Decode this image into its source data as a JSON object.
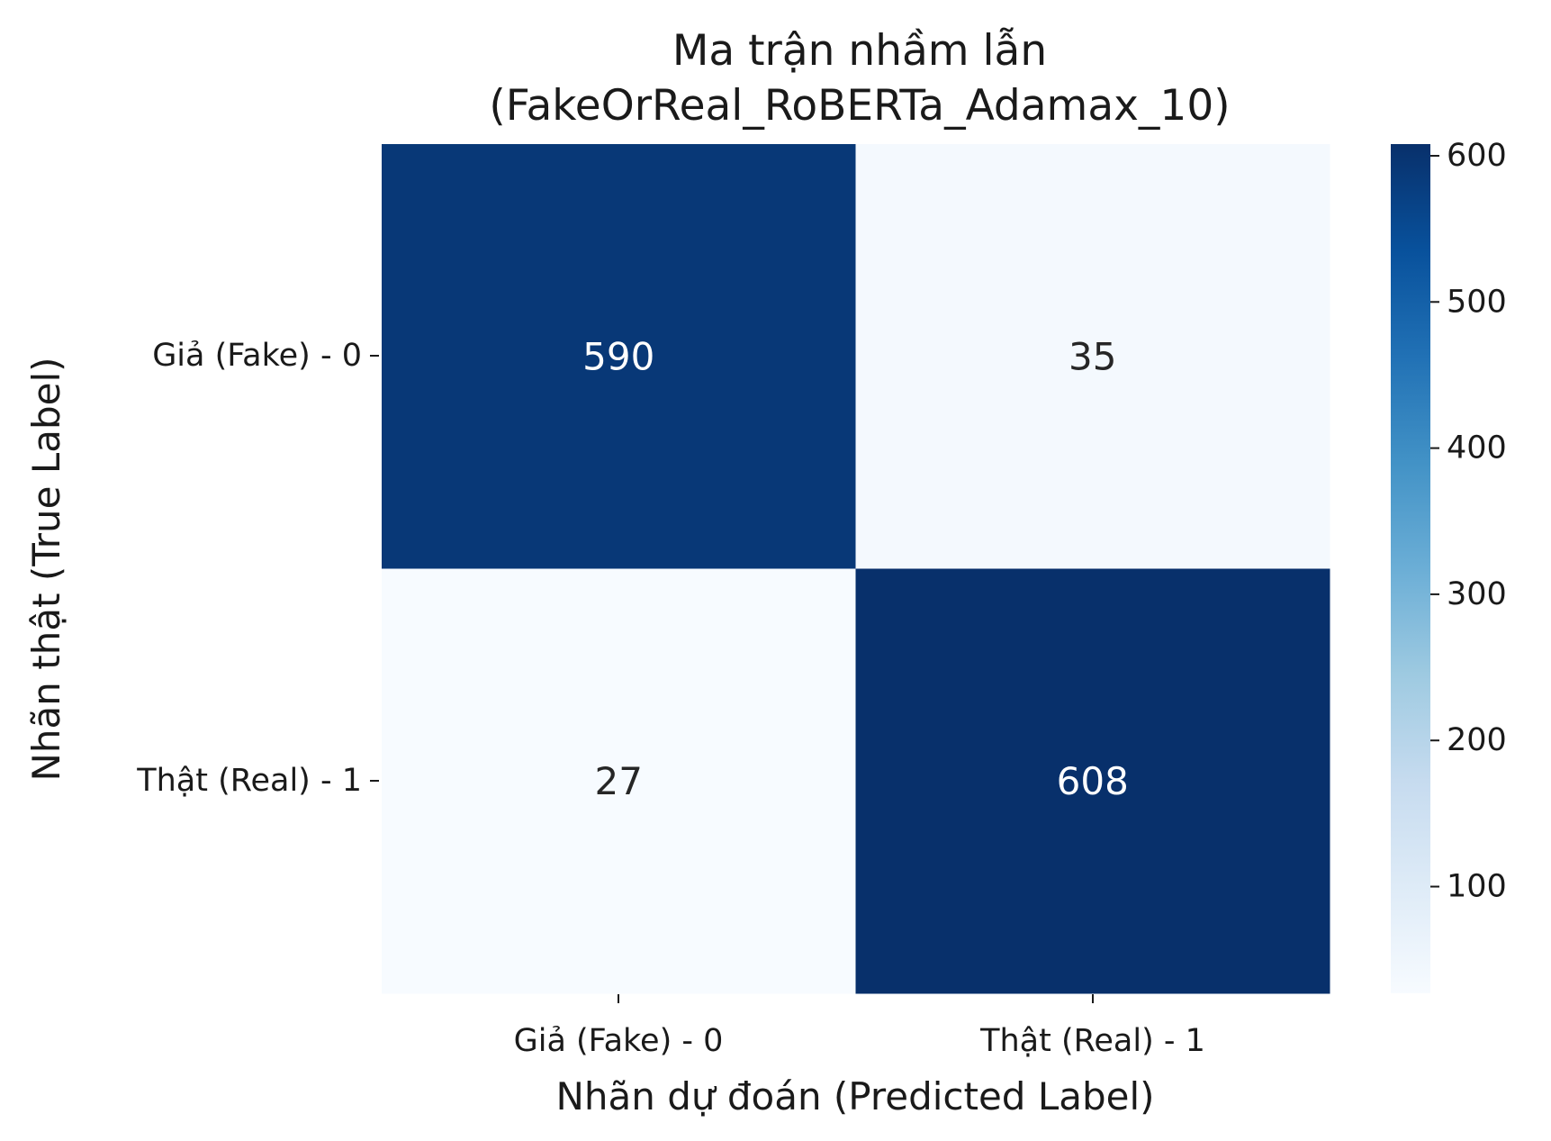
{
  "chart_data": {
    "type": "heatmap",
    "title_lines": [
      "Ma trận nhầm lẫn",
      "(FakeOrReal_RoBERTa_Adamax_10)"
    ],
    "xlabel": "Nhãn dự đoán (Predicted Label)",
    "ylabel": "Nhãn thật (True Label)",
    "x_categories": [
      "Giả (Fake) - 0",
      "Thật (Real) - 1"
    ],
    "y_categories": [
      "Giả (Fake) - 0",
      "Thật (Real) - 1"
    ],
    "values": [
      [
        590,
        35
      ],
      [
        27,
        608
      ]
    ],
    "colormap": "Blues",
    "colorbar": {
      "vmin": 27,
      "vmax": 608,
      "ticks": [
        100,
        200,
        300,
        400,
        500,
        600
      ],
      "tick_labels": [
        "100",
        "200",
        "300",
        "400",
        "500",
        "600"
      ]
    },
    "colors": {
      "low": "#f7fbff",
      "high": "#08306b",
      "text_on_dark": "#ffffff",
      "text_on_light": "#262626"
    }
  }
}
